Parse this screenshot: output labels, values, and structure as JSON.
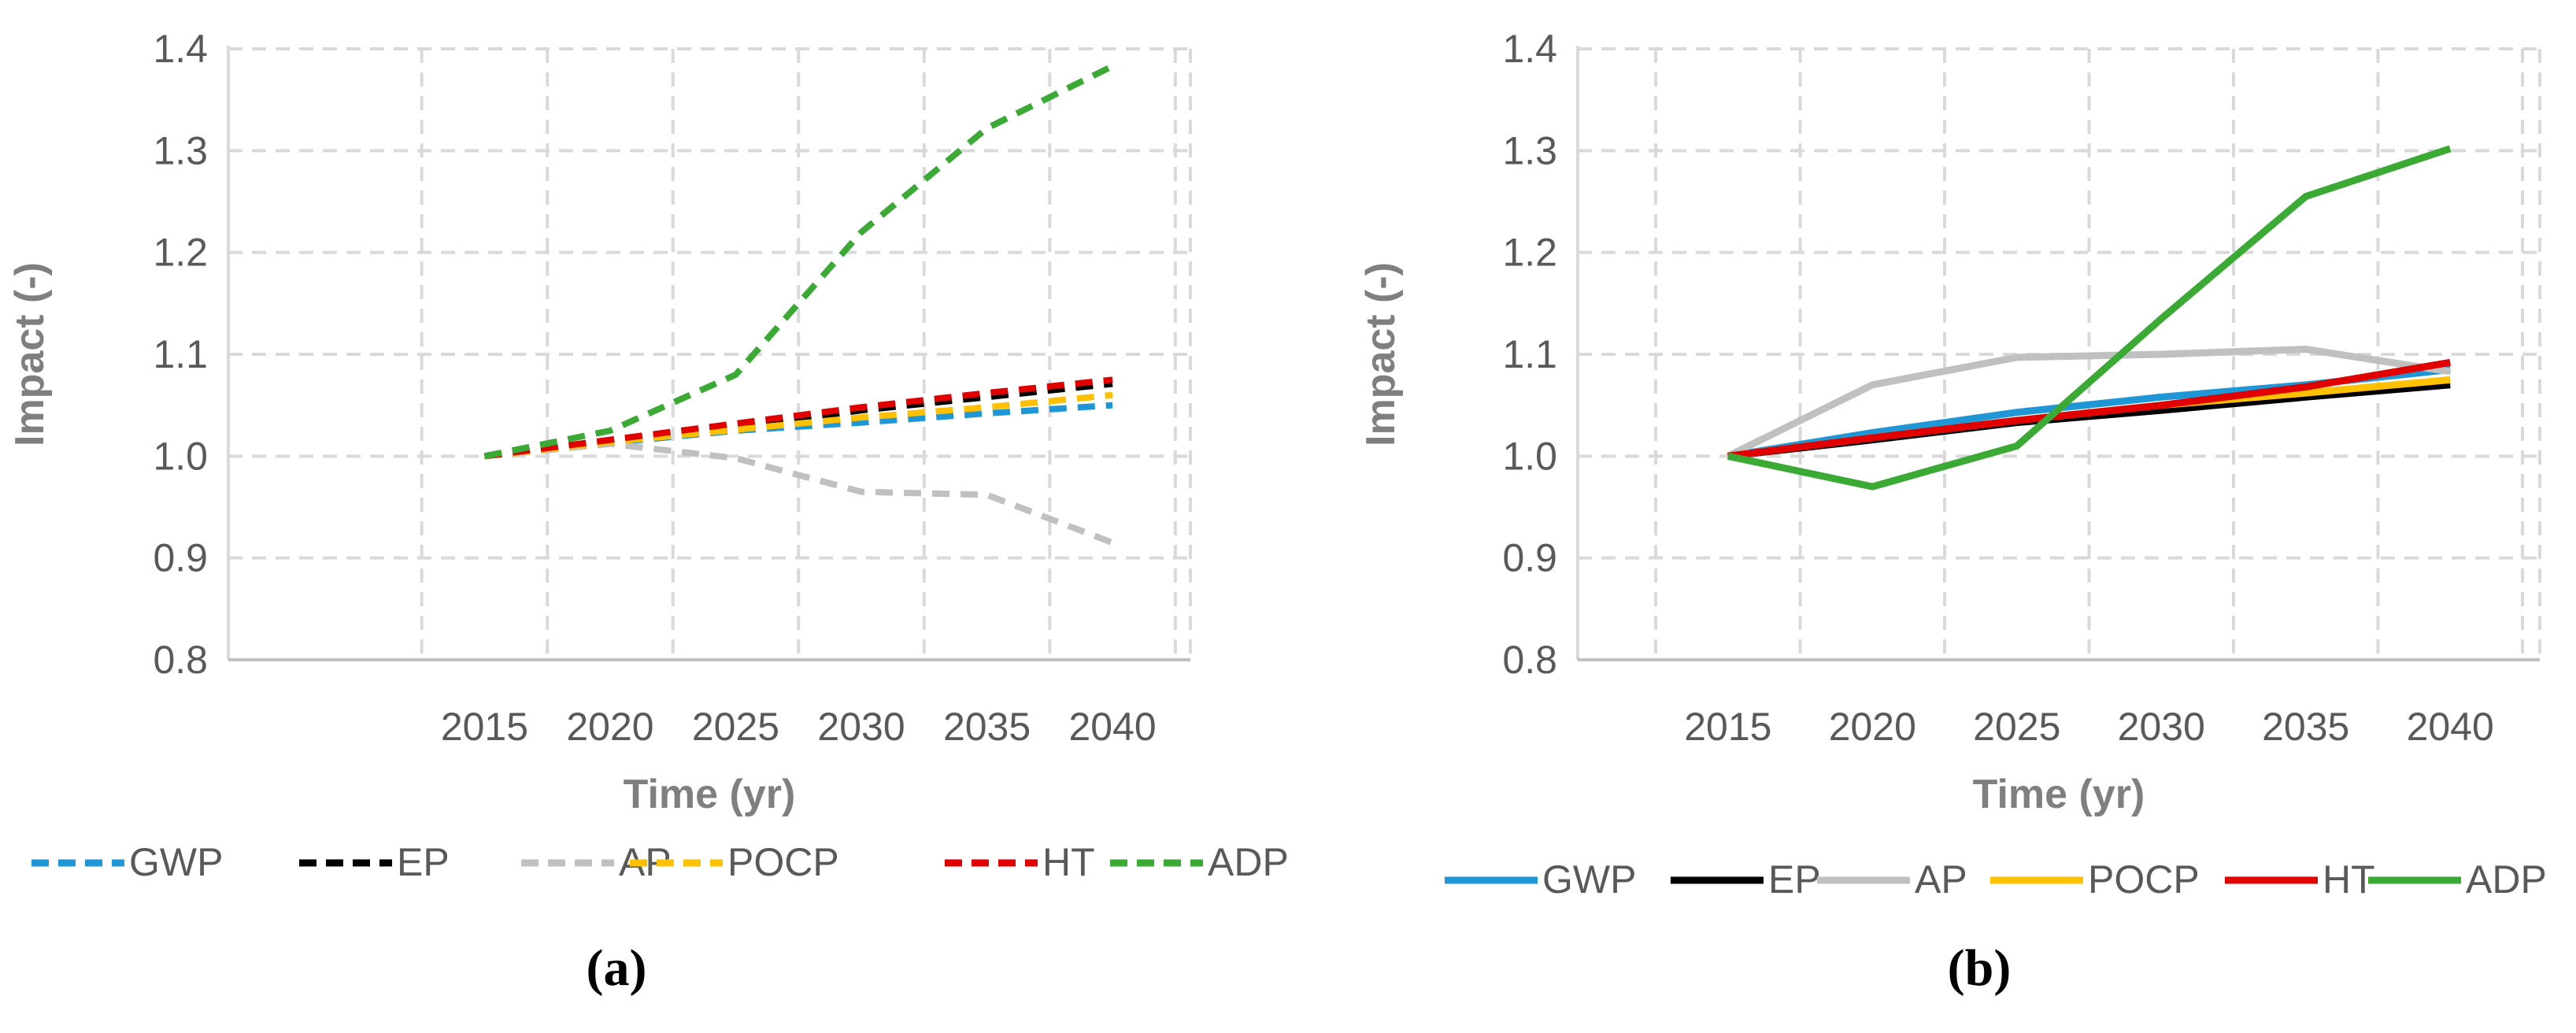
{
  "chart_data": [
    {
      "type": "line",
      "panel_label": "(a)",
      "line_style": "dashed",
      "x": [
        2015,
        2020,
        2025,
        2030,
        2035,
        2040
      ],
      "xlabel": "Time (yr)",
      "ylabel": "Impact (-)",
      "ylim": [
        0.8,
        1.4
      ],
      "yticks": [
        "0.8",
        "0.9",
        "1.0",
        "1.1",
        "1.2",
        "1.3",
        "1.4"
      ],
      "xticks": [
        "2015",
        "2020",
        "2025",
        "2030",
        "2035",
        "2040"
      ],
      "grid": true,
      "legend_position": "bottom",
      "series": [
        {
          "name": "GWP",
          "color": "#1f97d6",
          "values": [
            1.0,
            1.013,
            1.025,
            1.033,
            1.042,
            1.05
          ]
        },
        {
          "name": "EP",
          "color": "#000000",
          "values": [
            1.0,
            1.015,
            1.028,
            1.045,
            1.058,
            1.071
          ]
        },
        {
          "name": "AP",
          "color": "#c0c0c0",
          "values": [
            1.0,
            1.012,
            0.998,
            0.965,
            0.962,
            0.915
          ]
        },
        {
          "name": "POCP",
          "color": "#ffc000",
          "values": [
            1.0,
            1.014,
            1.026,
            1.038,
            1.048,
            1.06
          ]
        },
        {
          "name": "HT",
          "color": "#e00000",
          "values": [
            1.0,
            1.016,
            1.032,
            1.048,
            1.062,
            1.075
          ]
        },
        {
          "name": "ADP",
          "color": "#3aaa35",
          "values": [
            1.0,
            1.025,
            1.08,
            1.22,
            1.322,
            1.383
          ]
        }
      ]
    },
    {
      "type": "line",
      "panel_label": "(b)",
      "line_style": "solid",
      "x": [
        2015,
        2020,
        2025,
        2030,
        2035,
        2040
      ],
      "xlabel": "Time (yr)",
      "ylabel": "Impact (-)",
      "ylim": [
        0.8,
        1.4
      ],
      "yticks": [
        "0.8",
        "0.9",
        "1.0",
        "1.1",
        "1.2",
        "1.3",
        "1.4"
      ],
      "xticks": [
        "2015",
        "2020",
        "2025",
        "2030",
        "2035",
        "2040"
      ],
      "grid": true,
      "legend_position": "bottom",
      "series": [
        {
          "name": "GWP",
          "color": "#1f97d6",
          "values": [
            1.0,
            1.023,
            1.043,
            1.058,
            1.07,
            1.085
          ]
        },
        {
          "name": "EP",
          "color": "#000000",
          "values": [
            1.0,
            1.016,
            1.033,
            1.045,
            1.058,
            1.07
          ]
        },
        {
          "name": "AP",
          "color": "#c0c0c0",
          "values": [
            1.0,
            1.07,
            1.097,
            1.1,
            1.105,
            1.083
          ]
        },
        {
          "name": "POCP",
          "color": "#ffc000",
          "values": [
            1.0,
            1.018,
            1.035,
            1.05,
            1.062,
            1.075
          ]
        },
        {
          "name": "HT",
          "color": "#e00000",
          "values": [
            1.0,
            1.018,
            1.035,
            1.05,
            1.068,
            1.092
          ]
        },
        {
          "name": "ADP",
          "color": "#3aaa35",
          "values": [
            1.0,
            0.97,
            1.01,
            1.135,
            1.255,
            1.302
          ]
        }
      ]
    }
  ]
}
